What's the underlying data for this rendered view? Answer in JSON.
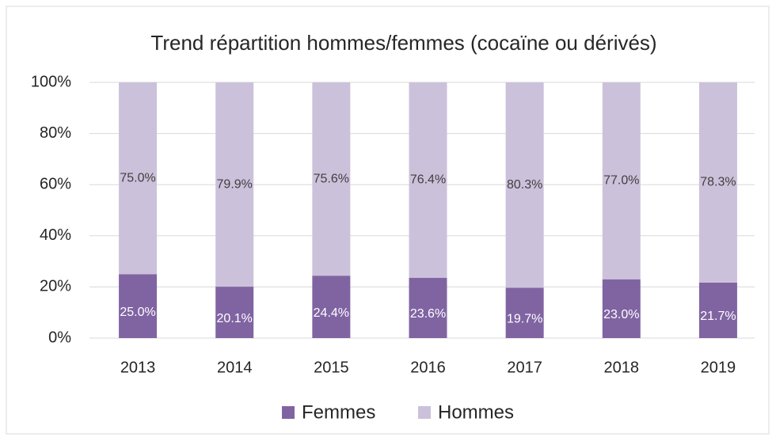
{
  "chart_data": {
    "type": "stacked_bar",
    "title": "Trend répartition hommes/femmes (cocaïne ou dérivés)",
    "categories": [
      "2013",
      "2014",
      "2015",
      "2016",
      "2017",
      "2018",
      "2019"
    ],
    "series": [
      {
        "name": "Femmes",
        "color": "#8064a2",
        "values": [
          25.0,
          20.1,
          24.4,
          23.6,
          19.7,
          23.0,
          21.7
        ],
        "value_labels": [
          "25.0%",
          "20.1%",
          "24.4%",
          "23.6%",
          "19.7%",
          "23.0%",
          "21.7%"
        ]
      },
      {
        "name": "Hommes",
        "color": "#ccc1da",
        "values": [
          75.0,
          79.9,
          75.6,
          76.4,
          80.3,
          77.0,
          78.3
        ],
        "value_labels": [
          "75.0%",
          "79.9%",
          "75.6%",
          "76.4%",
          "80.3%",
          "77.0%",
          "78.3%"
        ]
      }
    ],
    "ylim": [
      0,
      100
    ],
    "yticks": [
      {
        "value": 0,
        "label": "0%"
      },
      {
        "value": 20,
        "label": "20%"
      },
      {
        "value": 40,
        "label": "40%"
      },
      {
        "value": 60,
        "label": "60%"
      },
      {
        "value": 80,
        "label": "80%"
      },
      {
        "value": 100,
        "label": "100%"
      }
    ],
    "grid": true,
    "legend": "bottom"
  }
}
